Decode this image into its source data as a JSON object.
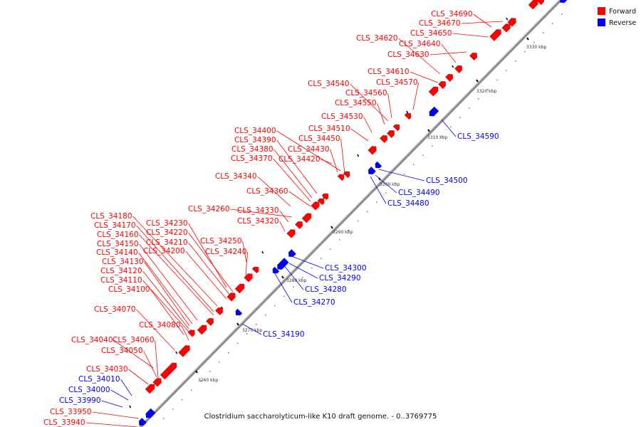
{
  "title": "Clostridium saccharolyticum-like K10 draft genome. - 0..3769775",
  "legend": [
    {
      "label": "Forward",
      "color": "#ff0000"
    },
    {
      "label": "Reverse",
      "color": "#0000ff"
    }
  ],
  "colors": {
    "forward": "#ff0000",
    "reverse": "#0000ff",
    "backbone": "#999999"
  },
  "scale_labels": [
    "3260 kbp",
    "3270 kbp",
    "3280 kbp",
    "3290 kbp",
    "3300 kbp",
    "3310 kbp",
    "3320 kbp",
    "3330 kbp"
  ],
  "forward_genes": [
    "CLS_34690",
    "CLS_34670",
    "CLS_34650",
    "CLS_34640",
    "CLS_34620",
    "CLS_34630",
    "CLS_34610",
    "CLS_34570",
    "CLS_34540",
    "CLS_34560",
    "CLS_34550",
    "CLS_34530",
    "CLS_34510",
    "CLS_34400",
    "CLS_34450",
    "CLS_34390",
    "CLS_34430",
    "CLS_34380",
    "CLS_34420",
    "CLS_34370",
    "CLS_34340",
    "CLS_34360",
    "CLS_34260",
    "CLS_34330",
    "CLS_34320",
    "CLS_34180",
    "CLS_34230",
    "CLS_34170",
    "CLS_34220",
    "CLS_34160",
    "CLS_34210",
    "CLS_34250",
    "CLS_34150",
    "CLS_34200",
    "CLS_34240",
    "CLS_34140",
    "CLS_34130",
    "CLS_34120",
    "CLS_34110",
    "CLS_34100",
    "CLS_34070",
    "CLS_34080",
    "CLS_34040",
    "CLS_34060",
    "CLS_34050",
    "CLS_34030",
    "CLS_33950",
    "CLS_33940"
  ],
  "reverse_genes": [
    "CLS_34590",
    "CLS_34500",
    "CLS_34490",
    "CLS_34480",
    "CLS_34300",
    "CLS_34290",
    "CLS_34280",
    "CLS_34270",
    "CLS_34190",
    "CLS_34010",
    "CLS_34000",
    "CLS_33990"
  ]
}
